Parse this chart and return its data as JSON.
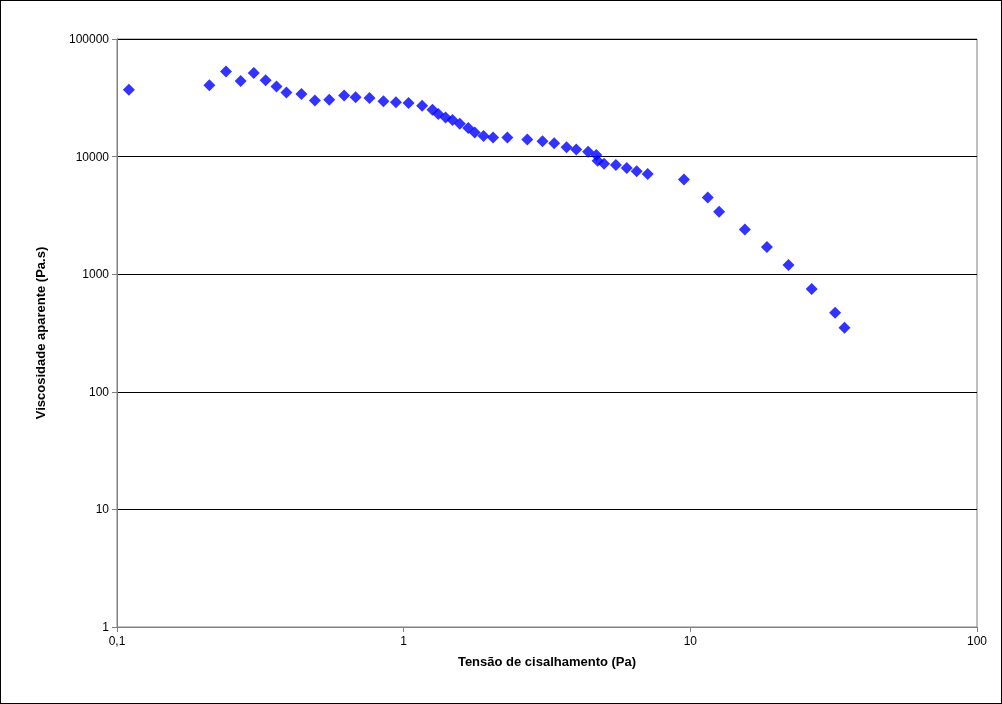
{
  "chart_data": {
    "type": "scatter",
    "xlabel": "Tensão de cisalhamento (Pa)",
    "ylabel": "Viscosidade aparente (Pa.s)",
    "log": "xy",
    "grid": "y",
    "marker": "diamond",
    "xlim": [
      0.1,
      100
    ],
    "xticks": [
      {
        "value": 0.1,
        "label": "0,1"
      },
      1,
      10,
      100
    ],
    "ylim": [
      1,
      100000
    ],
    "yticks": [
      1,
      10,
      100,
      1000,
      10000,
      100000
    ],
    "x": [
      0.11,
      0.21,
      0.24,
      0.27,
      0.3,
      0.33,
      0.36,
      0.39,
      0.44,
      0.49,
      0.55,
      0.62,
      0.68,
      0.76,
      0.85,
      0.94,
      1.04,
      1.16,
      1.26,
      1.32,
      1.4,
      1.48,
      1.57,
      1.68,
      1.77,
      1.9,
      2.05,
      2.3,
      2.7,
      3.05,
      3.35,
      3.7,
      4.0,
      4.4,
      4.7,
      4.75,
      5.0,
      5.5,
      6.0,
      6.5,
      7.1,
      9.5,
      11.5,
      12.6,
      15.5,
      18.5,
      22.0,
      26.5,
      32.0,
      34.5
    ],
    "series": [
      {
        "color": "#0000ff",
        "values": [
          37000,
          40500,
          53000,
          44000,
          51500,
          44500,
          39500,
          35000,
          34000,
          30000,
          30500,
          33000,
          32000,
          31500,
          29500,
          29000,
          28500,
          27000,
          25000,
          23000,
          21500,
          20500,
          19000,
          17500,
          16000,
          15000,
          14500,
          14500,
          14000,
          13500,
          13000,
          12000,
          11500,
          11000,
          10300,
          9200,
          8700,
          8500,
          8000,
          7500,
          7100,
          6400,
          4500,
          3400,
          2400,
          1700,
          1200,
          750,
          470,
          350
        ]
      }
    ]
  }
}
